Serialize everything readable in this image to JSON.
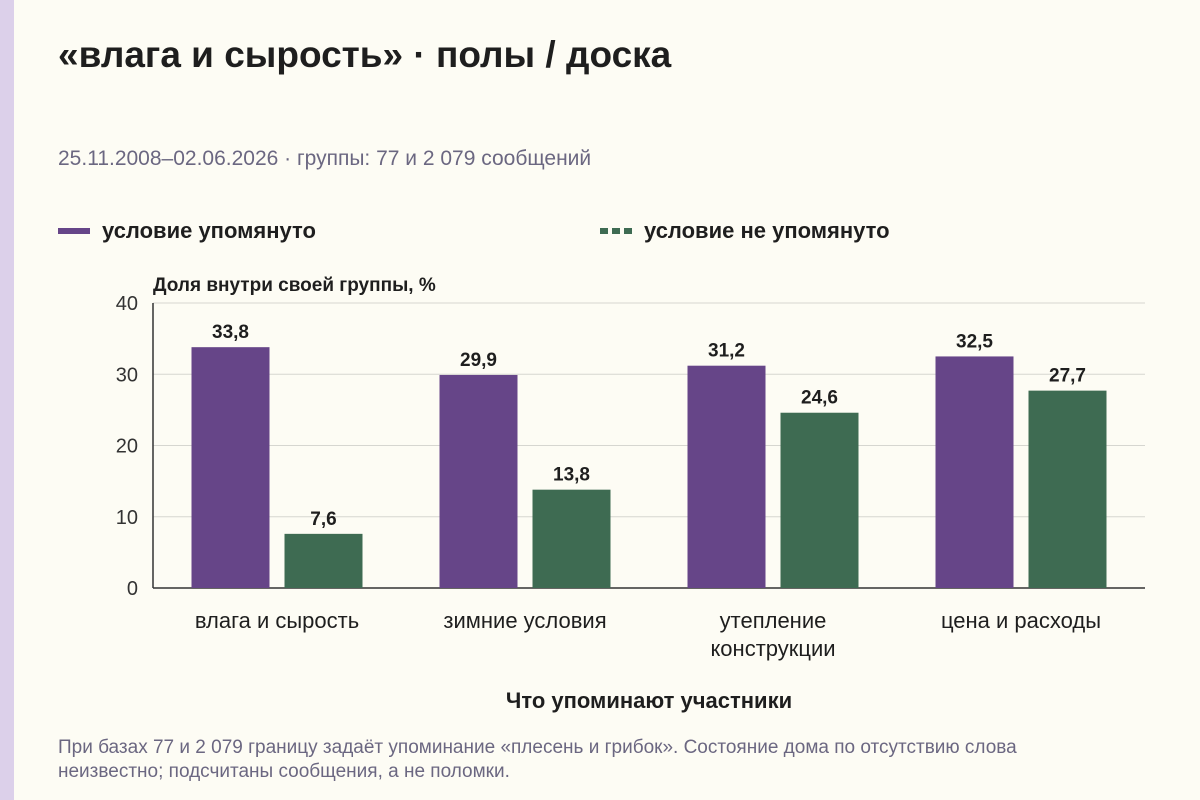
{
  "header": {
    "title": "«влага и сырость» · полы / доска",
    "subtitle": "25.11.2008–02.06.2026 · группы: 77 и 2 079 сообщений"
  },
  "footnote": "При базах 77 и 2 079 границу задаёт упоминание «плесень и грибок». Состояние дома по отсутствию слова неизвестно; подсчитаны сообщения, а не поломки.",
  "chart_data": {
    "type": "bar",
    "ylabel": "Доля внутри своей группы, %",
    "xlabel": "Что упоминают участники",
    "ylim": [
      0,
      40
    ],
    "yticks": [
      0,
      10,
      20,
      30,
      40
    ],
    "grid": true,
    "legend_position": "top",
    "categories": [
      [
        "влага и сырость"
      ],
      [
        "зимние условия"
      ],
      [
        "утепление",
        "конструкции"
      ],
      [
        "цена и расходы"
      ]
    ],
    "series": [
      {
        "name": "условие упомянуто",
        "color": "#664588",
        "values": [
          33.8,
          29.9,
          31.2,
          32.5
        ],
        "labels": [
          "33,8",
          "29,9",
          "31,2",
          "32,5"
        ]
      },
      {
        "name": "условие не упомянуто",
        "color": "#3e6b52",
        "values": [
          7.6,
          13.8,
          24.6,
          27.7
        ],
        "labels": [
          "7,6",
          "13,8",
          "24,6",
          "27,7"
        ]
      }
    ]
  }
}
